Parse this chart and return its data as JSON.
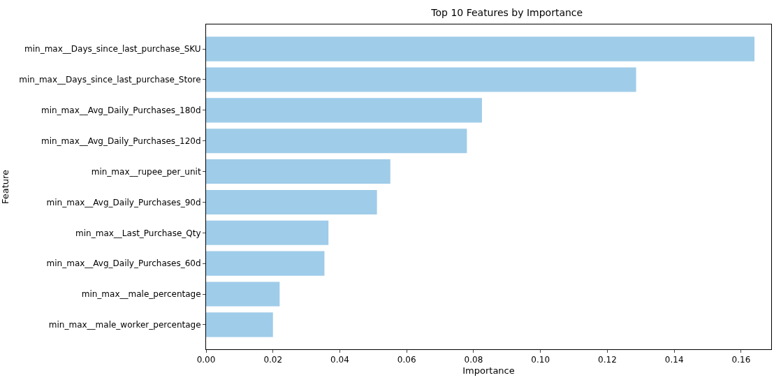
{
  "chart_data": {
    "type": "bar",
    "orientation": "horizontal",
    "title": "Top 10 Features by Importance",
    "xlabel": "Importance",
    "ylabel": "Feature",
    "categories": [
      "min_max__Days_since_last_purchase_SKU",
      "min_max__Days_since_last_purchase_Store",
      "min_max__Avg_Daily_Purchases_180d",
      "min_max__Avg_Daily_Purchases_120d",
      "min_max__rupee_per_unit",
      "min_max__Avg_Daily_Purchases_90d",
      "min_max__Last_Purchase_Qty",
      "min_max__Avg_Daily_Purchases_60d",
      "min_max__male_percentage",
      "min_max__male_worker_percentage"
    ],
    "values": [
      0.164,
      0.1286,
      0.0825,
      0.078,
      0.0551,
      0.0511,
      0.0366,
      0.0354,
      0.022,
      0.02
    ],
    "color": "#9fcce9",
    "xlim": [
      0,
      0.169
    ],
    "xticks": [
      {
        "value": 0,
        "label": "0.00"
      },
      {
        "value": 0.02,
        "label": "0.02"
      },
      {
        "value": 0.04,
        "label": "0.04"
      },
      {
        "value": 0.06,
        "label": "0.06"
      },
      {
        "value": 0.08,
        "label": "0.08"
      },
      {
        "value": 0.1,
        "label": "0.10"
      },
      {
        "value": 0.12,
        "label": "0.12"
      },
      {
        "value": 0.14,
        "label": "0.14"
      },
      {
        "value": 0.16,
        "label": "0.16"
      }
    ]
  }
}
